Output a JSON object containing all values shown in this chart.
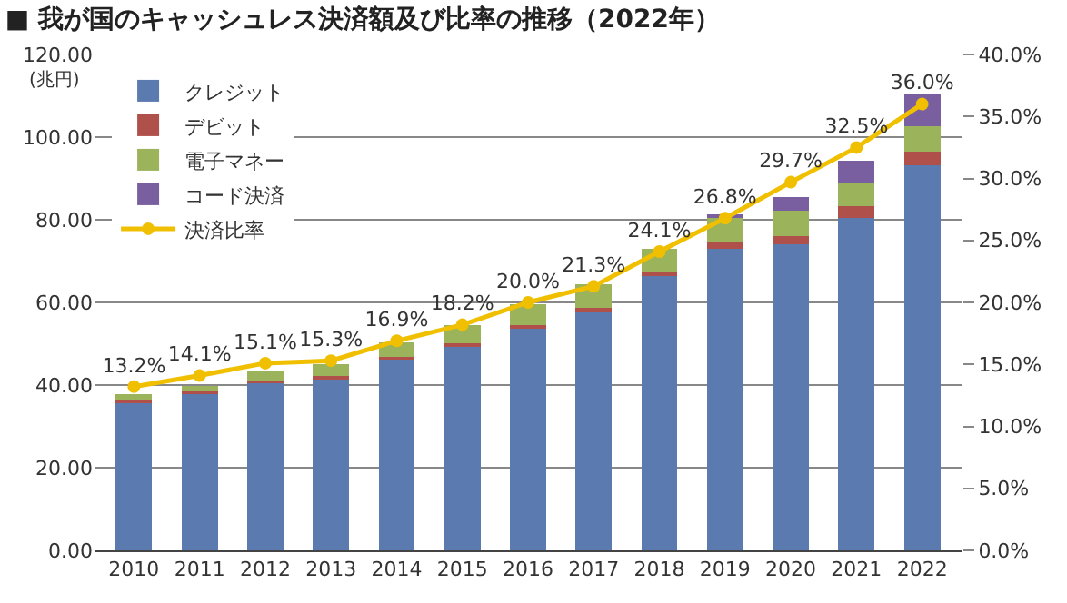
{
  "chart_data": {
    "type": "bar",
    "title": "■ 我が国のキャッシュレス決済額及び比率の推移（2022年）",
    "ylabel": "(兆円)",
    "categories": [
      "2010",
      "2011",
      "2012",
      "2013",
      "2014",
      "2015",
      "2016",
      "2017",
      "2018",
      "2019",
      "2020",
      "2021",
      "2022"
    ],
    "stacked": true,
    "series": [
      {
        "name": "クレジット",
        "color": "#5b7bb0",
        "values": [
          36.0,
          37.9,
          40.7,
          41.6,
          46.4,
          49.5,
          53.8,
          57.9,
          66.4,
          73.0,
          74.1,
          80.4,
          93.1
        ]
      },
      {
        "name": "デビット",
        "color": "#b0504a",
        "values": [
          0.5,
          0.5,
          0.5,
          0.5,
          0.5,
          0.6,
          0.7,
          0.8,
          1.0,
          1.7,
          1.9,
          2.8,
          3.3
        ]
      },
      {
        "name": "電子マネー",
        "color": "#9bb35a",
        "values": [
          1.4,
          1.3,
          2.0,
          2.9,
          3.4,
          4.3,
          5.1,
          5.8,
          5.6,
          5.7,
          6.3,
          5.9,
          6.3
        ]
      },
      {
        "name": "コード決済",
        "color": "#7a5fa0",
        "values": [
          null,
          null,
          null,
          null,
          null,
          null,
          null,
          null,
          null,
          1.0,
          3.2,
          5.2,
          7.6
        ]
      },
      {
        "name": "決済比率",
        "type": "line",
        "axis": "y2",
        "color": "#f0c000",
        "marker": "circle",
        "values": [
          13.2,
          14.1,
          15.1,
          15.3,
          16.9,
          18.2,
          20.0,
          21.3,
          24.1,
          26.8,
          29.7,
          32.5,
          36.0
        ],
        "value_labels": [
          "13.2%",
          "14.1%",
          "15.1%",
          "15.3%",
          "16.9%",
          "18.2%",
          "20.0%",
          "21.3%",
          "24.1%",
          "26.8%",
          "29.7%",
          "32.5%",
          "36.0%"
        ]
      }
    ],
    "ylim": [
      0,
      120
    ],
    "yticks": [
      {
        "value": 0,
        "label": "0.00"
      },
      {
        "value": 20,
        "label": "20.00"
      },
      {
        "value": 40,
        "label": "40.00"
      },
      {
        "value": 60,
        "label": "60.00"
      },
      {
        "value": 80,
        "label": "80.00"
      },
      {
        "value": 100,
        "label": "100.00"
      },
      {
        "value": 120,
        "label": "120.00"
      }
    ],
    "y2lim": [
      0,
      40
    ],
    "y2ticks": [
      {
        "value": 0,
        "label": "0.0%"
      },
      {
        "value": 5,
        "label": "5.0%"
      },
      {
        "value": 10,
        "label": "10.0%"
      },
      {
        "value": 15,
        "label": "15.0%"
      },
      {
        "value": 20,
        "label": "20.0%"
      },
      {
        "value": 25,
        "label": "25.0%"
      },
      {
        "value": 30,
        "label": "30.0%"
      },
      {
        "value": 35,
        "label": "35.0%"
      },
      {
        "value": 40,
        "label": "40.0%"
      }
    ],
    "grid": "y",
    "legend": "top left"
  }
}
